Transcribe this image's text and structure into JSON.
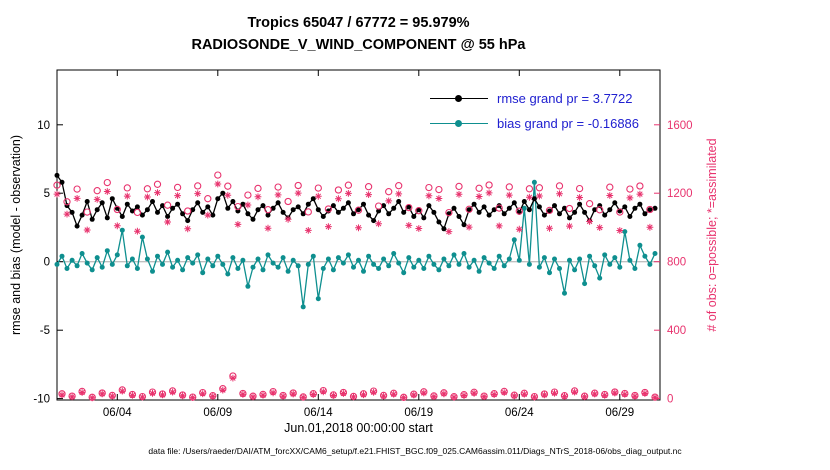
{
  "figure": {
    "title_line1": "Tropics 65047 / 67772 = 95.979%",
    "title_line2": "RADIOSONDE_V_WIND_COMPONENT @ 55 hPa",
    "xlabel": "Jun.01,2018 00:00:00 start",
    "ylabel_left": "rmse and bias (model - observation)",
    "ylabel_right": "# of obs: o=possible; *=assimilated",
    "footer": "data file: /Users/raeder/DAI/ATM_forcXX/CAM6_setup/f.e21.FHIST_BGC.f09_025.CAM6assim.011/Diags_NTrS_2018-06/obs_diag_output.nc",
    "colors": {
      "rmse": "#000000",
      "bias": "#0e8f8f",
      "obs_counts": "#e8336e",
      "legend_text": "#2020d0",
      "zero_line": "#c0c0c0",
      "axes": "#000000"
    }
  },
  "chart_data": {
    "type": "line",
    "title": "Tropics 65047 / 67772 = 95.979%",
    "subtitle": "RADIOSONDE_V_WIND_COMPONENT @ 55 hPa",
    "xlabel": "Jun.01,2018 00:00:00 start",
    "ylabel_left": "rmse and bias (model - observation)",
    "ylabel_right": "# of obs: o=possible; *=assimilated",
    "obs_assimilated_total": 65047,
    "obs_possible_total": 67772,
    "percent_assimilated": 95.979,
    "rmse_grand_mean": 3.7722,
    "bias_grand_mean": -0.16886,
    "grid": false,
    "x_start_days": 0,
    "x_step_days": 0.25,
    "xlim_days": [
      0,
      30
    ],
    "xticks": [
      {
        "t": 3,
        "label": "06/04"
      },
      {
        "t": 8,
        "label": "06/09"
      },
      {
        "t": 13,
        "label": "06/14"
      },
      {
        "t": 18,
        "label": "06/19"
      },
      {
        "t": 23,
        "label": "06/24"
      },
      {
        "t": 28,
        "label": "06/29"
      }
    ],
    "ylim_left": [
      -10.1,
      14.0
    ],
    "yticks_left": [
      10,
      5,
      0,
      -5,
      -10
    ],
    "ylim_right": [
      -8,
      1920
    ],
    "yticks_right": [
      1600,
      1200,
      800,
      400,
      0
    ],
    "legend": {
      "position": "top-right",
      "entries": [
        {
          "series": "rmse",
          "label": "rmse grand pr = 3.7722"
        },
        {
          "series": "bias",
          "label": "bias grand pr = -0.16886"
        }
      ]
    },
    "series": [
      {
        "name": "rmse",
        "axis": "left",
        "style": "line",
        "marker": "filled-circle",
        "color": "#000000",
        "values": [
          6.3,
          5.8,
          4.1,
          3.6,
          2.6,
          3.4,
          4.4,
          3.1,
          3.8,
          4.3,
          3.2,
          4.6,
          3.9,
          3.3,
          4.2,
          3.7,
          4.0,
          3.4,
          3.8,
          4.4,
          3.6,
          4.1,
          3.3,
          3.9,
          4.2,
          3.5,
          3.0,
          3.8,
          4.3,
          3.6,
          4.0,
          3.4,
          4.6,
          5.0,
          3.9,
          4.4,
          3.7,
          4.2,
          3.5,
          3.1,
          3.8,
          4.1,
          3.4,
          3.9,
          4.3,
          3.6,
          3.2,
          3.8,
          4.0,
          3.5,
          4.2,
          4.6,
          3.8,
          3.3,
          3.7,
          4.1,
          3.6,
          3.9,
          4.3,
          3.5,
          3.8,
          4.2,
          3.4,
          3.0,
          3.7,
          4.1,
          3.5,
          3.9,
          4.4,
          3.6,
          4.0,
          3.3,
          3.8,
          3.2,
          4.1,
          3.6,
          2.9,
          2.4,
          3.5,
          3.9,
          3.3,
          2.7,
          3.8,
          4.2,
          3.6,
          4.0,
          3.4,
          3.8,
          4.1,
          3.5,
          3.9,
          4.3,
          3.6,
          4.4,
          3.8,
          4.6,
          4.0,
          3.4,
          3.7,
          4.1,
          3.5,
          3.9,
          3.2,
          3.6,
          4.2,
          3.6,
          3.0,
          3.8,
          4.1,
          3.4,
          3.8,
          4.3,
          3.7,
          4.0,
          3.3,
          3.9,
          4.2,
          3.5,
          3.8,
          3.9
        ]
      },
      {
        "name": "bias",
        "axis": "left",
        "style": "line",
        "marker": "filled-circle",
        "color": "#0e8f8f",
        "values": [
          -0.2,
          0.4,
          -0.5,
          0.1,
          -0.3,
          0.6,
          -0.1,
          -0.6,
          0.3,
          -0.4,
          0.8,
          -0.2,
          0.5,
          2.3,
          -0.3,
          0.2,
          -0.5,
          1.8,
          0.2,
          -0.7,
          0.4,
          -0.2,
          0.7,
          -0.4,
          0.1,
          -0.6,
          0.3,
          -0.1,
          0.5,
          -0.8,
          0.2,
          -0.3,
          0.4,
          -0.2,
          -0.9,
          0.3,
          -0.5,
          0.1,
          -1.8,
          -0.4,
          0.2,
          -0.6,
          0.5,
          -0.1,
          -0.4,
          0.3,
          -0.7,
          0.1,
          -0.3,
          -3.3,
          -0.2,
          0.4,
          -2.7,
          -0.5,
          0.2,
          -0.6,
          0.3,
          -0.1,
          0.5,
          -0.4,
          0.1,
          -0.7,
          0.4,
          -0.2,
          -0.5,
          0.2,
          -0.3,
          0.6,
          -0.1,
          -0.8,
          0.3,
          -0.4,
          0.1,
          -0.5,
          0.4,
          -0.2,
          -0.6,
          0.2,
          -0.3,
          0.5,
          -0.2,
          0.6,
          -0.4,
          0.1,
          -0.7,
          0.3,
          -0.1,
          -0.5,
          0.4,
          -0.3,
          0.2,
          1.6,
          0.1,
          3.9,
          -0.2,
          5.8,
          -0.4,
          0.3,
          -0.8,
          0.2,
          -0.5,
          -2.3,
          0.1,
          -0.6,
          0.2,
          -1.6,
          0.4,
          -0.3,
          -1.2,
          0.5,
          -0.2,
          0.3,
          -0.4,
          2.2,
          0.1,
          -0.5,
          1.2,
          0.4,
          -0.2,
          0.6
        ]
      },
      {
        "name": "n_possible",
        "axis": "right",
        "style": "markers",
        "marker": "open-circle",
        "color": "#e8336e",
        "values": [
          1247,
          28,
          1150,
          15,
          1224,
          42,
          1090,
          8,
          1215,
          33,
          1262,
          19,
          1105,
          51,
          1231,
          24,
          1088,
          12,
          1226,
          38,
          1252,
          27,
          1130,
          45,
          1234,
          21,
          1096,
          9,
          1243,
          35,
          1168,
          17,
          1306,
          58,
          1241,
          132,
          1122,
          30,
          1189,
          14,
          1228,
          25,
          1104,
          41,
          1236,
          18,
          1152,
          33,
          1245,
          10,
          1091,
          29,
          1230,
          47,
          1108,
          22,
          1219,
          36,
          1247,
          13,
          1101,
          28,
          1238,
          44,
          1125,
          19,
          1209,
          31,
          1244,
          8,
          1116,
          26,
          1098,
          40,
          1233,
          16,
          1221,
          34,
          1087,
          11,
          1240,
          23,
          1106,
          37,
          1229,
          15,
          1248,
          29,
          1113,
          42,
          1237,
          20,
          1095,
          31,
          1226,
          12,
          1232,
          27,
          1100,
          38,
          1243,
          17,
          1111,
          45,
          1227,
          14,
          1139,
          32,
          1103,
          24,
          1235,
          39,
          1090,
          30,
          1224,
          18,
          1242,
          36,
          1105,
          9
        ]
      },
      {
        "name": "n_assimilated",
        "axis": "right",
        "style": "markers",
        "marker": "asterisk",
        "color": "#e8336e",
        "values": [
          1195,
          22,
          1078,
          11,
          1170,
          36,
          985,
          5,
          1164,
          28,
          1210,
          15,
          1010,
          44,
          1183,
          19,
          978,
          9,
          1178,
          31,
          1204,
          22,
          1032,
          38,
          1186,
          17,
          992,
          6,
          1198,
          29,
          1072,
          13,
          1254,
          50,
          1188,
          120,
          1018,
          25,
          1131,
          10,
          1179,
          20,
          996,
          34,
          1190,
          14,
          1048,
          27,
          1201,
          7,
          983,
          24,
          1182,
          40,
          1005,
          18,
          1168,
          30,
          1199,
          10,
          998,
          23,
          1192,
          37,
          1022,
          15,
          1155,
          26,
          1196,
          6,
          1012,
          21,
          994,
          33,
          1185,
          12,
          1169,
          28,
          976,
          8,
          1194,
          18,
          1002,
          31,
          1181,
          12,
          1202,
          24,
          1009,
          35,
          1189,
          16,
          990,
          26,
          1176,
          9,
          1184,
          22,
          995,
          32,
          1197,
          13,
          1008,
          38,
          1175,
          11,
          1035,
          27,
          999,
          19,
          1187,
          33,
          982,
          25,
          1173,
          14,
          1195,
          30,
          1001,
          7
        ]
      }
    ]
  }
}
